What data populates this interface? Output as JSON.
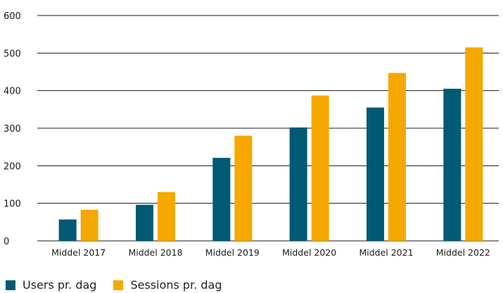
{
  "chart_data": {
    "type": "bar",
    "categories": [
      "Middel 2017",
      "Middel 2018",
      "Middel 2019",
      "Middel 2020",
      "Middel 2021",
      "Middel 2022"
    ],
    "series": [
      {
        "name": "Users pr. dag",
        "color": "#005a73",
        "values": [
          57,
          96,
          221,
          302,
          355,
          405
        ]
      },
      {
        "name": "Sessions pr. dag",
        "color": "#f5a800",
        "values": [
          83,
          130,
          280,
          387,
          447,
          515
        ]
      }
    ],
    "title": "",
    "xlabel": "",
    "ylabel": "",
    "ylim": [
      0,
      600
    ],
    "yticks": [
      0,
      100,
      200,
      300,
      400,
      500,
      600
    ],
    "grid": true,
    "legend_position": "bottom-left"
  }
}
